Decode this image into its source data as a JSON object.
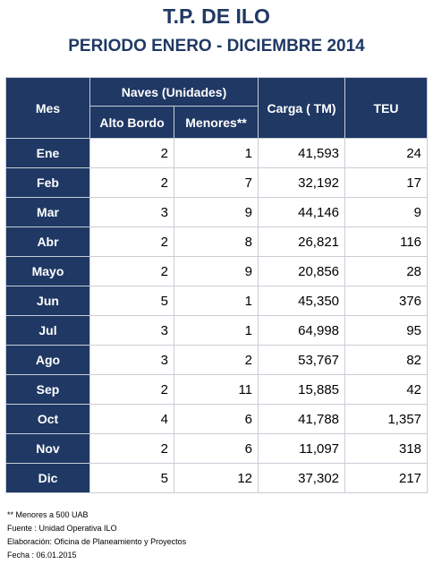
{
  "title": "T.P. DE ILO",
  "subtitle": "PERIODO ENERO - DICIEMBRE 2014",
  "table": {
    "headers": {
      "mes": "Mes",
      "naves": "Naves (Unidades)",
      "alto_bordo": "Alto Bordo",
      "menores": "Menores**",
      "carga": "Carga ( TM)",
      "teu": "TEU"
    },
    "rows": [
      {
        "mes": "Ene",
        "alto_bordo": "2",
        "menores": "1",
        "carga": "41,593",
        "teu": "24"
      },
      {
        "mes": "Feb",
        "alto_bordo": "2",
        "menores": "7",
        "carga": "32,192",
        "teu": "17"
      },
      {
        "mes": "Mar",
        "alto_bordo": "3",
        "menores": "9",
        "carga": "44,146",
        "teu": "9"
      },
      {
        "mes": "Abr",
        "alto_bordo": "2",
        "menores": "8",
        "carga": "26,821",
        "teu": "116"
      },
      {
        "mes": "Mayo",
        "alto_bordo": "2",
        "menores": "9",
        "carga": "20,856",
        "teu": "28"
      },
      {
        "mes": "Jun",
        "alto_bordo": "5",
        "menores": "1",
        "carga": "45,350",
        "teu": "376"
      },
      {
        "mes": "Jul",
        "alto_bordo": "3",
        "menores": "1",
        "carga": "64,998",
        "teu": "95"
      },
      {
        "mes": "Ago",
        "alto_bordo": "3",
        "menores": "2",
        "carga": "53,767",
        "teu": "82"
      },
      {
        "mes": "Sep",
        "alto_bordo": "2",
        "menores": "11",
        "carga": "15,885",
        "teu": "42"
      },
      {
        "mes": "Oct",
        "alto_bordo": "4",
        "menores": "6",
        "carga": "41,788",
        "teu": "1,357"
      },
      {
        "mes": "Nov",
        "alto_bordo": "2",
        "menores": "6",
        "carga": "11,097",
        "teu": "318"
      },
      {
        "mes": "Dic",
        "alto_bordo": "5",
        "menores": "12",
        "carga": "37,302",
        "teu": "217"
      }
    ]
  },
  "notes": {
    "menores": "** Menores a 500 UAB",
    "fuente": "Fuente : Unidad Operativa ILO",
    "elaboracion": "Elaboración: Oficina de Planeamiento y Proyectos",
    "fecha": "Fecha : 06.01.2015"
  },
  "colors": {
    "header_bg": "#1f3864",
    "header_text": "#ffffff",
    "title_text": "#1f3864",
    "cell_border": "#c9ced6"
  }
}
